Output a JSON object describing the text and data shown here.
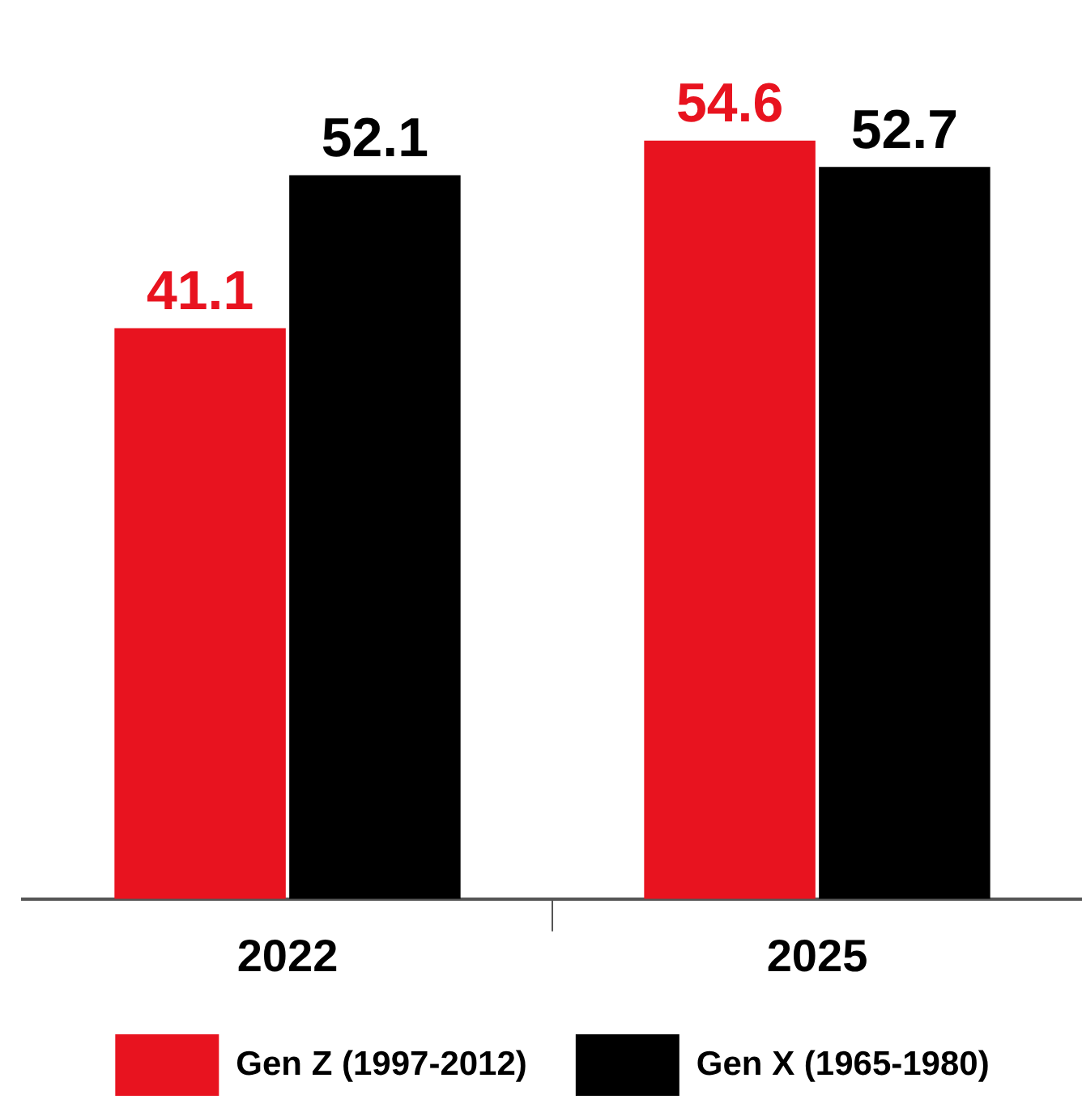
{
  "chart_data": {
    "type": "bar",
    "categories": [
      "2022",
      "2025"
    ],
    "series": [
      {
        "name": "Gen Z (1997-2012)",
        "color": "#e8131f",
        "values": [
          41.1,
          54.6
        ]
      },
      {
        "name": "Gen X (1965-1980)",
        "color": "#000000",
        "values": [
          52.1,
          52.7
        ]
      }
    ],
    "data_labels": true,
    "grid": false,
    "legend": "bottom"
  }
}
